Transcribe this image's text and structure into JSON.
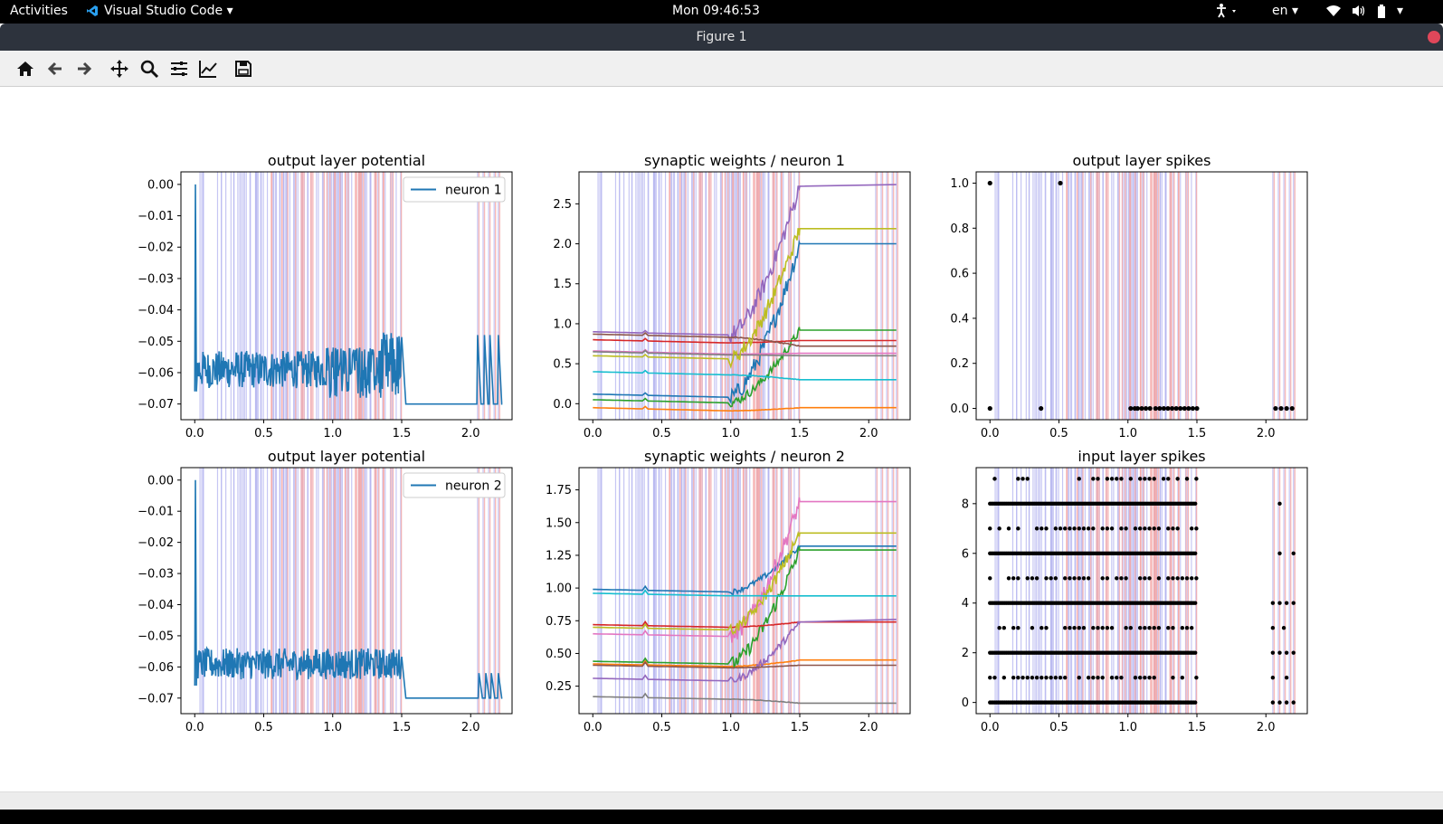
{
  "topbar": {
    "activities": "Activities",
    "app_name": "Visual Studio Code",
    "clock": "Mon 09:46:53",
    "language": "en"
  },
  "window": {
    "title": "Figure 1"
  },
  "toolbar": {
    "buttons": [
      "home-icon",
      "back-icon",
      "forward-icon",
      "pan-icon",
      "zoom-icon",
      "configure-subplots-icon",
      "edit-axis-icon",
      "save-icon"
    ]
  },
  "colors": {
    "blue_band": "#b4b4f0",
    "red_band": "#f4a9a9",
    "tab_blue": "#1f77b4",
    "tab_orange": "#ff7f0e",
    "tab_green": "#2ca02c",
    "tab_red": "#d62728",
    "tab_purple": "#9467bd",
    "tab_brown": "#8c564b",
    "tab_pink": "#e377c2",
    "tab_gray": "#7f7f7f",
    "tab_olive": "#bcbd22",
    "tab_cyan": "#17becf"
  },
  "chart_data": [
    {
      "type": "line",
      "title": "output layer potential",
      "legend": [
        "neuron 1"
      ],
      "legend_position": "top-right",
      "xlim": [
        -0.1,
        2.3
      ],
      "ylim": [
        -0.075,
        0.004
      ],
      "xticks": [
        "0.0",
        "0.5",
        "1.0",
        "1.5",
        "2.0"
      ],
      "yticks": [
        "0.00",
        "−0.01",
        "−0.02",
        "−0.03",
        "−0.04",
        "−0.05",
        "−0.06",
        "−0.07"
      ],
      "series": [
        {
          "name": "neuron 1",
          "color": "#1f77b4"
        }
      ]
    },
    {
      "type": "line",
      "title": "synaptic weights / neuron 1",
      "xlim": [
        -0.1,
        2.3
      ],
      "ylim": [
        -0.2,
        2.9
      ],
      "xticks": [
        "0.0",
        "0.5",
        "1.0",
        "1.5",
        "2.0"
      ],
      "yticks": [
        "0.0",
        "0.5",
        "1.0",
        "1.5",
        "2.0",
        "2.5"
      ],
      "series": [
        {
          "color": "#1f77b4",
          "end": 2.0
        },
        {
          "color": "#ff7f0e",
          "end": -0.05
        },
        {
          "color": "#2ca02c",
          "end": 0.92
        },
        {
          "color": "#d62728",
          "end": 0.79
        },
        {
          "color": "#9467bd",
          "end": 2.72
        },
        {
          "color": "#8c564b",
          "end": 0.72
        },
        {
          "color": "#e377c2",
          "end": 0.63
        },
        {
          "color": "#7f7f7f",
          "end": 0.6
        },
        {
          "color": "#bcbd22",
          "end": 2.19
        },
        {
          "color": "#17becf",
          "end": 0.3
        }
      ]
    },
    {
      "type": "scatter",
      "title": "output layer spikes",
      "xlim": [
        -0.1,
        2.3
      ],
      "ylim": [
        -0.05,
        1.05
      ],
      "xticks": [
        "0.0",
        "0.5",
        "1.0",
        "1.5",
        "2.0"
      ],
      "yticks": [
        "0.0",
        "0.2",
        "0.4",
        "0.6",
        "0.8",
        "1.0"
      ],
      "points_y1": [
        0.0,
        0.51
      ],
      "points_y0": [
        0.0,
        0.37,
        1.02,
        1.05,
        1.07,
        1.1,
        1.13,
        1.16,
        1.2,
        1.23,
        1.26,
        1.29,
        1.32,
        1.35,
        1.38,
        1.41,
        1.44,
        1.47,
        1.5,
        2.07,
        2.11,
        2.15,
        2.19
      ]
    },
    {
      "type": "line",
      "title": "output layer potential",
      "legend": [
        "neuron 2"
      ],
      "legend_position": "top-right",
      "xlim": [
        -0.1,
        2.3
      ],
      "ylim": [
        -0.075,
        0.004
      ],
      "xticks": [
        "0.0",
        "0.5",
        "1.0",
        "1.5",
        "2.0"
      ],
      "yticks": [
        "0.00",
        "−0.01",
        "−0.02",
        "−0.03",
        "−0.04",
        "−0.05",
        "−0.06",
        "−0.07"
      ],
      "series": [
        {
          "name": "neuron 2",
          "color": "#1f77b4"
        }
      ]
    },
    {
      "type": "line",
      "title": "synaptic weights / neuron 2",
      "xlim": [
        -0.1,
        2.3
      ],
      "ylim": [
        0.04,
        1.92
      ],
      "xticks": [
        "0.0",
        "0.5",
        "1.0",
        "1.5",
        "2.0"
      ],
      "yticks": [
        "0.25",
        "0.50",
        "0.75",
        "1.00",
        "1.25",
        "1.50",
        "1.75"
      ],
      "series": [
        {
          "color": "#1f77b4",
          "end": 1.32
        },
        {
          "color": "#ff7f0e",
          "end": 0.45
        },
        {
          "color": "#2ca02c",
          "end": 1.29
        },
        {
          "color": "#d62728",
          "end": 0.74
        },
        {
          "color": "#9467bd",
          "end": 0.74
        },
        {
          "color": "#8c564b",
          "end": 0.41
        },
        {
          "color": "#e377c2",
          "end": 1.66
        },
        {
          "color": "#7f7f7f",
          "end": 0.12
        },
        {
          "color": "#bcbd22",
          "end": 1.42
        },
        {
          "color": "#17becf",
          "end": 0.94
        }
      ]
    },
    {
      "type": "scatter",
      "title": "input layer spikes",
      "xlim": [
        -0.1,
        2.3
      ],
      "ylim": [
        -0.45,
        9.45
      ],
      "xticks": [
        "0.0",
        "0.5",
        "1.0",
        "1.5",
        "2.0"
      ],
      "yticks": [
        "0",
        "2",
        "4",
        "6",
        "8"
      ],
      "rows": 10
    }
  ]
}
